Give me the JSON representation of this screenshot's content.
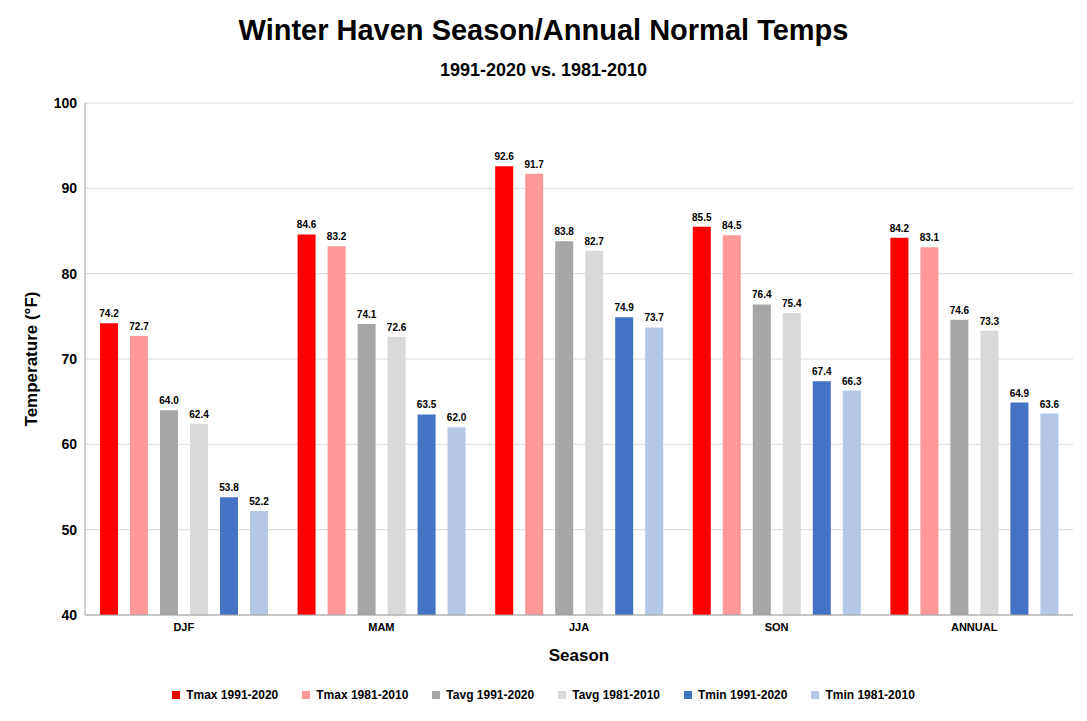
{
  "chart_data": {
    "type": "bar",
    "title": "Winter Haven Season/Annual Normal Temps",
    "subtitle": "1991-2020 vs. 1981-2010",
    "xlabel": "Season",
    "ylabel": "Temperature (°F)",
    "categories": [
      "DJF",
      "MAM",
      "JJA",
      "SON",
      "ANNUAL"
    ],
    "series": [
      {
        "name": "Tmax 1991-2020",
        "color": "#ff0000",
        "values": [
          74.2,
          84.6,
          92.6,
          85.5,
          84.2
        ],
        "value_labels": [
          "74.2",
          "84.6",
          "92.6",
          "85.5",
          "84.2"
        ]
      },
      {
        "name": "Tmax 1981-2010",
        "color": "#ff9999",
        "values": [
          72.7,
          83.2,
          91.7,
          84.5,
          83.1
        ],
        "value_labels": [
          "72.7",
          "83.2",
          "91.7",
          "84.5",
          "83.1"
        ]
      },
      {
        "name": "Tavg 1991-2020",
        "color": "#a6a6a6",
        "values": [
          64.0,
          74.1,
          83.8,
          76.4,
          74.6
        ],
        "value_labels": [
          "64.0",
          "74.1",
          "83.8",
          "76.4",
          "74.6"
        ]
      },
      {
        "name": "Tavg 1981-2010",
        "color": "#d9d9d9",
        "values": [
          62.4,
          72.6,
          82.7,
          75.4,
          73.3
        ],
        "value_labels": [
          "62.4",
          "72.6",
          "82.7",
          "75.4",
          "73.3"
        ]
      },
      {
        "name": "Tmin 1991-2020",
        "color": "#4472c4",
        "values": [
          53.8,
          63.5,
          74.9,
          67.4,
          64.9
        ],
        "value_labels": [
          "53.8",
          "63.5",
          "74.9",
          "67.4",
          "64.9"
        ]
      },
      {
        "name": "Tmin 1981-2010",
        "color": "#b4c7e7",
        "values": [
          52.2,
          62.0,
          73.7,
          66.3,
          63.6
        ],
        "value_labels": [
          "52.2",
          "62.0",
          "73.7",
          "66.3",
          "63.6"
        ]
      }
    ],
    "ylim": [
      40,
      100
    ],
    "yticks": [
      40,
      50,
      60,
      70,
      80,
      90,
      100
    ],
    "grid": true,
    "data_labels": true,
    "legend": "bottom"
  }
}
